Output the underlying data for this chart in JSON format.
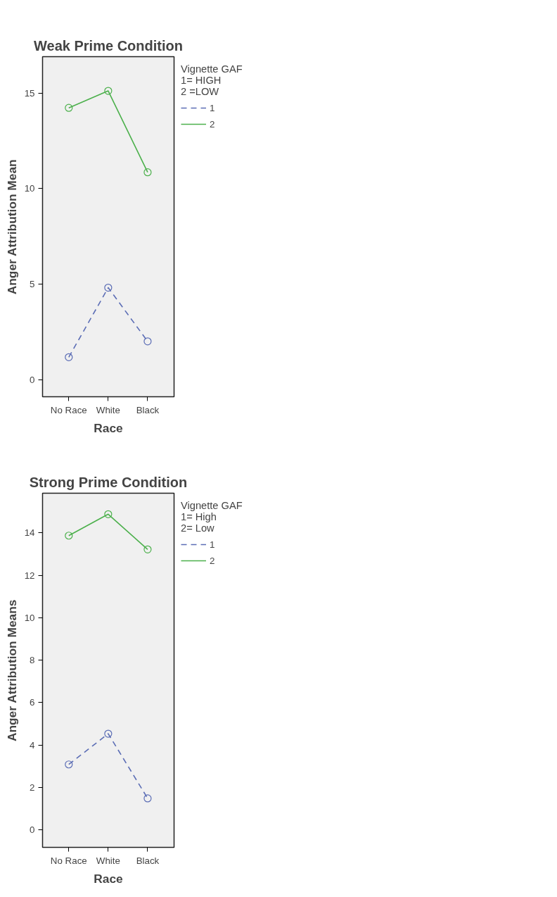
{
  "chart_data": [
    {
      "type": "line",
      "title": "Weak Prime Condition",
      "xlabel": "Race",
      "ylabel": "Anger Attribution Mean",
      "legend_title": "Vignette GAF\n1= HIGH\n2 =LOW",
      "categories": [
        "No Race",
        "White",
        "Black"
      ],
      "ylim": [
        -0.9,
        16.9
      ],
      "yticks": [
        0,
        5,
        10,
        15
      ],
      "grid": false,
      "legend": "right",
      "marker": "circle",
      "series": [
        {
          "name": "1",
          "color": "#5b6db5",
          "line_style": "dashed",
          "values": [
            1.17,
            4.81,
            2.0
          ]
        },
        {
          "name": "2",
          "color": "#4cb04c",
          "line_style": "solid",
          "values": [
            14.22,
            15.11,
            10.85
          ]
        }
      ]
    },
    {
      "type": "line",
      "title": "Strong Prime Condition",
      "xlabel": "Race",
      "ylabel": "Anger Attribution Means",
      "legend_title": "Vignette GAF\n1= High\n2= Low",
      "categories": [
        "No Race",
        "White",
        "Black"
      ],
      "ylim": [
        -0.83,
        15.87
      ],
      "yticks": [
        0,
        2,
        4,
        6,
        8,
        10,
        12,
        14
      ],
      "grid": false,
      "legend": "right",
      "marker": "circle",
      "series": [
        {
          "name": "1",
          "color": "#5b6db5",
          "line_style": "dashed",
          "values": [
            3.08,
            4.53,
            1.48
          ]
        },
        {
          "name": "2",
          "color": "#4cb04c",
          "line_style": "solid",
          "values": [
            13.87,
            14.88,
            13.22
          ]
        }
      ]
    }
  ]
}
